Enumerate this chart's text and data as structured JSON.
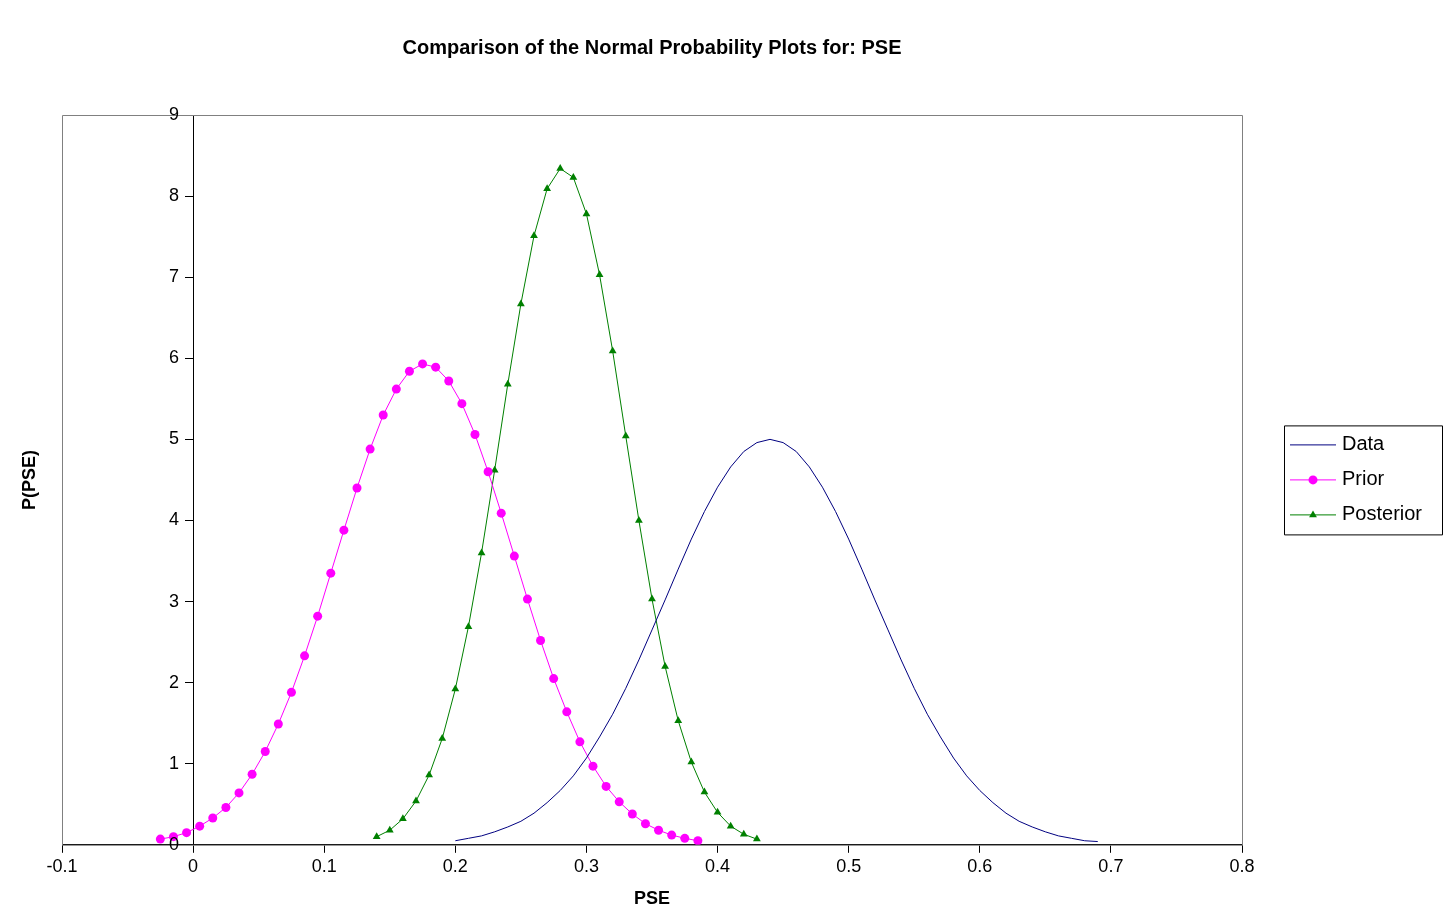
{
  "chart_data": {
    "type": "line",
    "title": "Comparison of the Normal Probability Plots for: PSE",
    "xlabel": "PSE",
    "ylabel": "P(PSE)",
    "xlim": [
      -0.1,
      0.8
    ],
    "xticks": [
      -0.1,
      0,
      0.1,
      0.2,
      0.3,
      0.4,
      0.5,
      0.6,
      0.7,
      0.8
    ],
    "ylim": [
      0,
      9
    ],
    "yticks": [
      0,
      1,
      2,
      3,
      4,
      5,
      6,
      7,
      8,
      9
    ],
    "grid": false,
    "legend": "right",
    "series": [
      {
        "name": "Data",
        "color": "#000080",
        "marker": "none",
        "x": [
          0.2,
          0.21,
          0.22,
          0.23,
          0.24,
          0.25,
          0.26,
          0.27,
          0.28,
          0.29,
          0.3,
          0.31,
          0.32,
          0.33,
          0.34,
          0.35,
          0.36,
          0.37,
          0.38,
          0.39,
          0.4,
          0.41,
          0.42,
          0.43,
          0.44,
          0.45,
          0.46,
          0.47,
          0.48,
          0.49,
          0.5,
          0.51,
          0.52,
          0.53,
          0.54,
          0.55,
          0.56,
          0.57,
          0.58,
          0.59,
          0.6,
          0.61,
          0.62,
          0.63,
          0.64,
          0.65,
          0.66,
          0.67,
          0.68,
          0.69
        ],
        "values": [
          0.05,
          0.08,
          0.11,
          0.16,
          0.22,
          0.29,
          0.39,
          0.52,
          0.67,
          0.85,
          1.07,
          1.33,
          1.61,
          1.93,
          2.28,
          2.65,
          3.02,
          3.4,
          3.77,
          4.11,
          4.41,
          4.66,
          4.85,
          4.96,
          5.0,
          4.96,
          4.85,
          4.66,
          4.41,
          4.11,
          3.77,
          3.4,
          3.02,
          2.65,
          2.28,
          1.93,
          1.61,
          1.33,
          1.07,
          0.85,
          0.67,
          0.52,
          0.39,
          0.29,
          0.22,
          0.16,
          0.11,
          0.08,
          0.05,
          0.04
        ]
      },
      {
        "name": "Prior",
        "color": "#ff00ff",
        "marker": "circle",
        "x": [
          -0.025,
          -0.015,
          -0.005,
          0.005,
          0.015,
          0.025,
          0.035,
          0.045,
          0.055,
          0.065,
          0.075,
          0.085,
          0.095,
          0.105,
          0.115,
          0.125,
          0.135,
          0.145,
          0.155,
          0.165,
          0.175,
          0.185,
          0.195,
          0.205,
          0.215,
          0.225,
          0.235,
          0.245,
          0.255,
          0.265,
          0.275,
          0.285,
          0.295,
          0.305,
          0.315,
          0.325,
          0.335,
          0.345,
          0.355,
          0.365,
          0.375,
          0.385
        ],
        "values": [
          0.07,
          0.1,
          0.15,
          0.23,
          0.33,
          0.46,
          0.64,
          0.87,
          1.15,
          1.49,
          1.88,
          2.33,
          2.82,
          3.35,
          3.88,
          4.4,
          4.88,
          5.3,
          5.62,
          5.84,
          5.93,
          5.89,
          5.72,
          5.44,
          5.06,
          4.6,
          4.09,
          3.56,
          3.03,
          2.52,
          2.05,
          1.64,
          1.27,
          0.97,
          0.72,
          0.53,
          0.38,
          0.26,
          0.18,
          0.12,
          0.08,
          0.05
        ]
      },
      {
        "name": "Posterior",
        "color": "#008000",
        "marker": "triangle",
        "x": [
          0.14,
          0.15,
          0.16,
          0.17,
          0.18,
          0.19,
          0.2,
          0.21,
          0.22,
          0.23,
          0.24,
          0.25,
          0.26,
          0.27,
          0.28,
          0.29,
          0.3,
          0.31,
          0.32,
          0.33,
          0.34,
          0.35,
          0.36,
          0.37,
          0.38,
          0.39,
          0.4,
          0.41,
          0.42,
          0.43
        ],
        "values": [
          0.1,
          0.18,
          0.32,
          0.54,
          0.86,
          1.31,
          1.92,
          2.69,
          3.6,
          4.62,
          5.68,
          6.67,
          7.51,
          8.09,
          8.34,
          8.23,
          7.78,
          7.03,
          6.09,
          5.04,
          4.0,
          3.03,
          2.2,
          1.53,
          1.02,
          0.65,
          0.4,
          0.23,
          0.13,
          0.07
        ]
      }
    ]
  }
}
